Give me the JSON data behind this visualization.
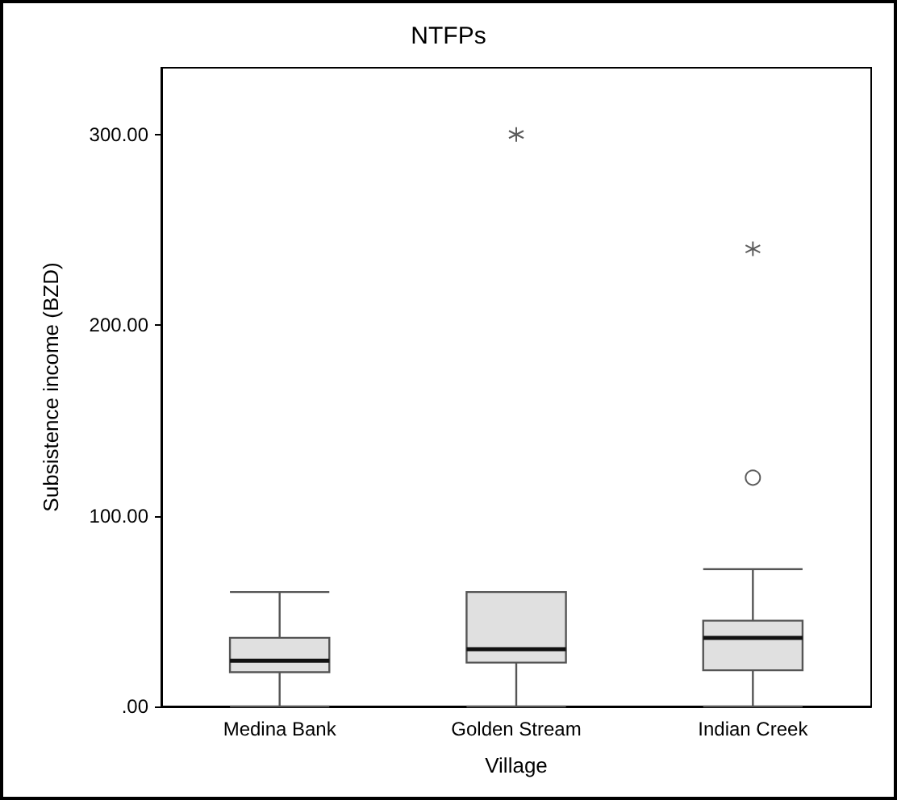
{
  "chart_data": {
    "type": "box",
    "title": "NTFPs",
    "xlabel": "Village",
    "ylabel": "Subsistence income (BZD)",
    "categories": [
      "Medina Bank",
      "Golden Stream",
      "Indian Creek"
    ],
    "series": [
      {
        "color": "#e0e0e0",
        "boxes": [
          {
            "low": 0,
            "q1": 18,
            "median": 24,
            "q3": 36,
            "high": 60
          },
          {
            "low": 0,
            "q1": 23,
            "median": 30,
            "q3": 60,
            "high": 60,
            "outliers": [
              300
            ]
          },
          {
            "low": 0,
            "q1": 19,
            "median": 36,
            "q3": 45,
            "high": 72,
            "outliers": [
              120,
              240
            ]
          }
        ]
      }
    ],
    "ylim": [
      0,
      335
    ],
    "yticks": [
      {
        "value": 0,
        "label": ".00"
      },
      {
        "value": 100,
        "label": "100.00"
      },
      {
        "value": 200,
        "label": "200.00"
      },
      {
        "value": 300,
        "label": "300.00"
      }
    ],
    "grid": false
  }
}
